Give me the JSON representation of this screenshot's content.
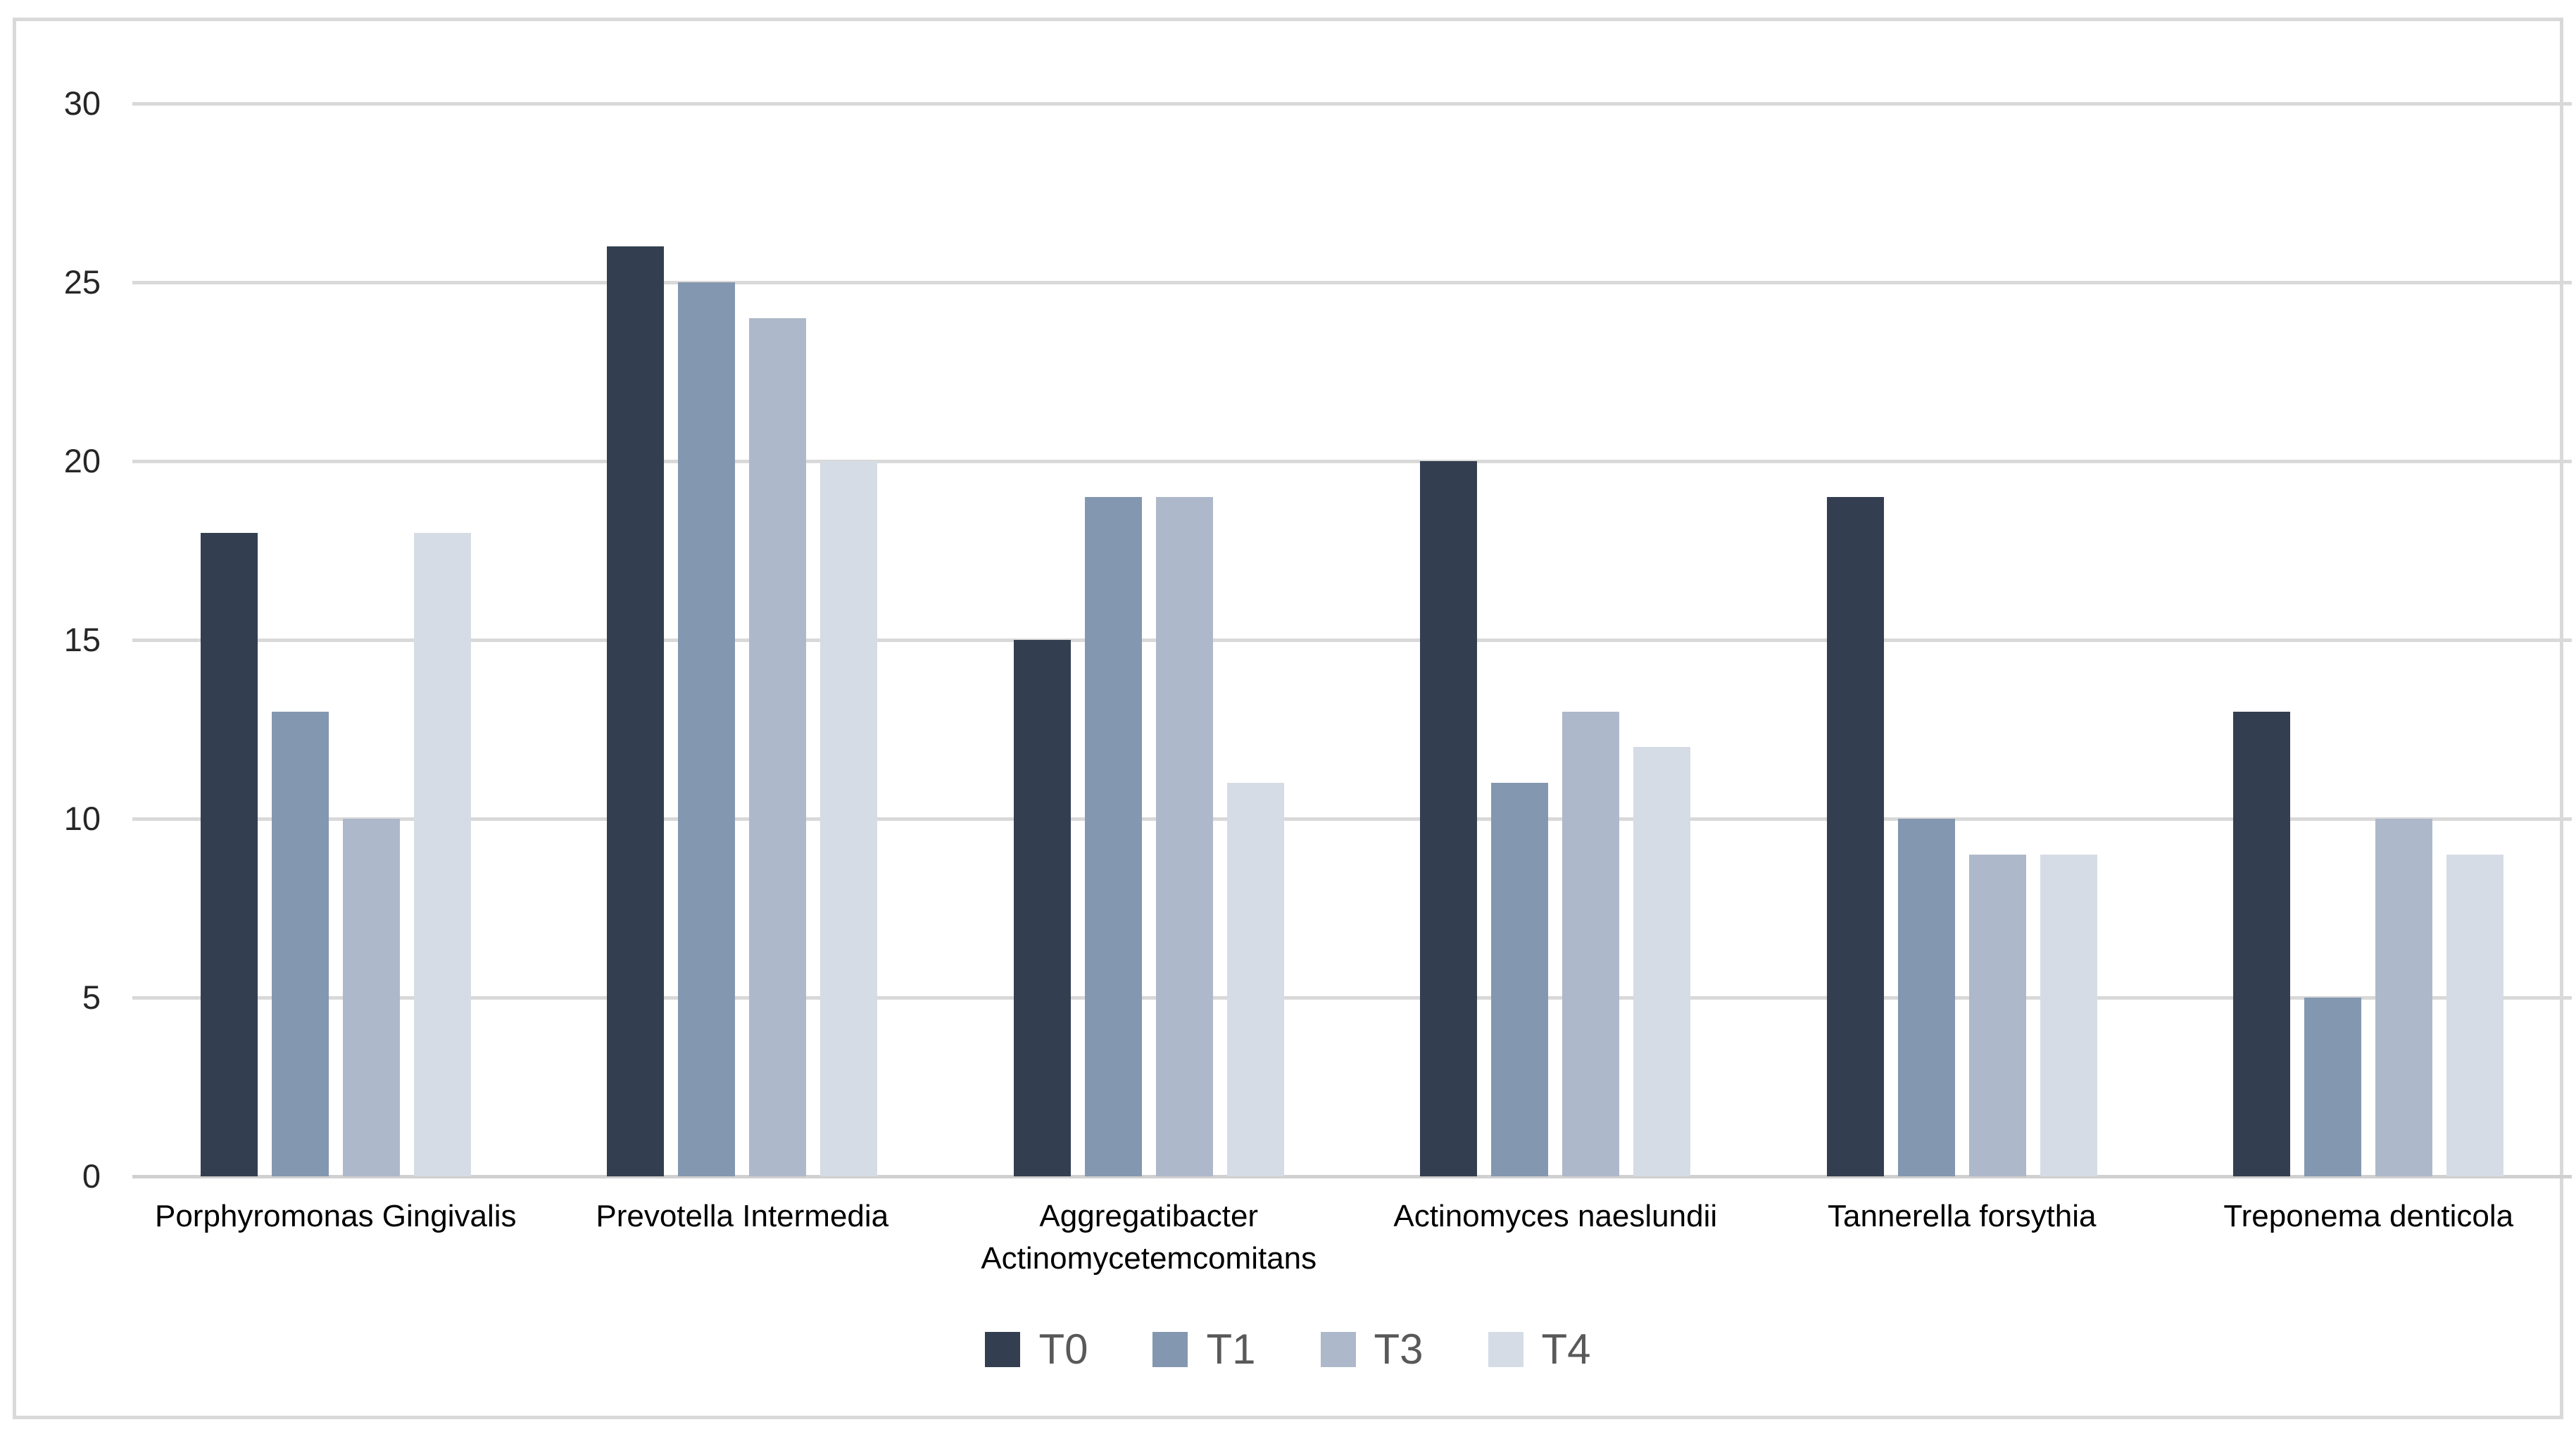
{
  "chart_data": {
    "type": "bar",
    "categories": [
      "Porphyromonas Gingivalis",
      "Prevotella Intermedia",
      "Aggregatibacter Actinomycetemcomitans",
      "Actinomyces naeslundii",
      "Tannerella forsythia",
      "Treponema denticola"
    ],
    "series": [
      {
        "name": "T0",
        "color": "#333F50",
        "values": [
          18,
          26,
          15,
          20,
          19,
          13
        ]
      },
      {
        "name": "T1",
        "color": "#8497B0",
        "values": [
          13,
          25,
          19,
          11,
          10,
          5
        ]
      },
      {
        "name": "T3",
        "color": "#ADB9CA",
        "values": [
          10,
          24,
          19,
          13,
          9,
          10
        ]
      },
      {
        "name": "T4",
        "color": "#D6DCE5",
        "values": [
          18,
          20,
          11,
          12,
          9,
          9
        ]
      }
    ],
    "title": "",
    "xlabel": "",
    "ylabel": "",
    "ylim": [
      0,
      30
    ],
    "yticks": [
      0,
      5,
      10,
      15,
      20,
      25,
      30
    ],
    "grid": true,
    "legend_position": "bottom"
  },
  "colors": {
    "background": "#FFFFFF",
    "frame_border": "#D9D9D9",
    "gridline": "#D9D9D9",
    "axis_line": "#D0D0D0",
    "tick_label": "#262626",
    "category_label": "#000000",
    "legend_label": "#595959"
  }
}
